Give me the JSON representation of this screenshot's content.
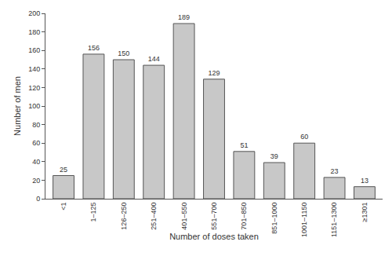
{
  "chart_data": {
    "type": "bar",
    "x_label": "Number of doses taken",
    "y_label": "Number of men",
    "categories": [
      "<1",
      "1–125",
      "126–250",
      "251–400",
      "401–550",
      "551–700",
      "701–850",
      "851–1000",
      "1001–1150",
      "1151–1300",
      "≥1301"
    ],
    "values": [
      25,
      156,
      150,
      144,
      189,
      129,
      51,
      39,
      60,
      23,
      13
    ],
    "color": "#c8c8c8",
    "ylim": [
      0,
      200
    ],
    "yticks": [
      0,
      20,
      40,
      60,
      80,
      100,
      120,
      140,
      160,
      180,
      200
    ],
    "grid": false,
    "data_labels": true
  }
}
